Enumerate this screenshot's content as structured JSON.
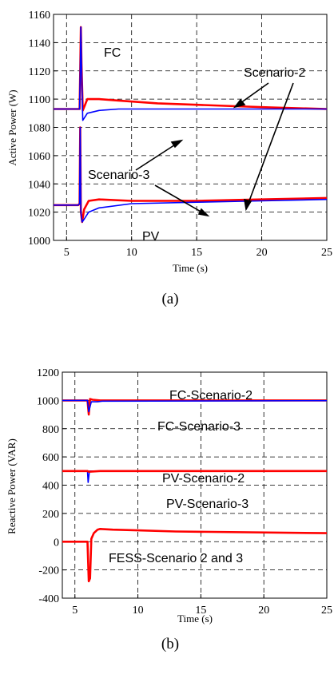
{
  "chart_data": [
    {
      "type": "line",
      "panel_label": "(a)",
      "xlabel": "Time (s)",
      "ylabel": "Active Power (W)",
      "xlim": [
        4,
        25
      ],
      "ylim": [
        1000,
        1160
      ],
      "xticks": [
        "5",
        "10",
        "15",
        "20",
        "25"
      ],
      "xtick_values": [
        5,
        10,
        15,
        20,
        25
      ],
      "yticks": [
        "1000",
        "1020",
        "1040",
        "1060",
        "1080",
        "1100",
        "1120",
        "1140",
        "1160"
      ],
      "ytick_values": [
        1000,
        1020,
        1040,
        1060,
        1080,
        1100,
        1120,
        1140,
        1160
      ],
      "grid": true,
      "annotations": [
        "FC",
        "Scenario-2",
        "Scenario-3",
        "PV"
      ],
      "series": [
        {
          "color": "#ff0000",
          "x": [
            4,
            5.9,
            6.0,
            6.05,
            6.1,
            6.15,
            6.25,
            6.6,
            7.5,
            9,
            12,
            15,
            18,
            21,
            25
          ],
          "y": [
            1093,
            1093,
            1093,
            1120,
            1151,
            1125,
            1092,
            1100,
            1100,
            1099,
            1097,
            1096,
            1095,
            1094,
            1093
          ]
        },
        {
          "color": "#0000ff",
          "x": [
            4,
            5.9,
            6.0,
            6.05,
            6.1,
            6.15,
            6.25,
            6.6,
            7.5,
            9,
            12,
            15,
            18,
            21,
            25
          ],
          "y": [
            1093,
            1093,
            1093,
            1120,
            1151,
            1125,
            1085,
            1090,
            1092,
            1093,
            1093,
            1093,
            1093,
            1093,
            1093
          ]
        },
        {
          "color": "#ff0000",
          "x": [
            4,
            5.9,
            6.0,
            6.05,
            6.1,
            6.2,
            6.35,
            6.7,
            7.5,
            10,
            15,
            20,
            25
          ],
          "y": [
            1025,
            1025,
            1026,
            1080,
            1020,
            1013,
            1022,
            1028,
            1029,
            1028,
            1028,
            1029,
            1030
          ]
        },
        {
          "color": "#0000ff",
          "x": [
            4,
            5.9,
            6.0,
            6.05,
            6.1,
            6.2,
            6.35,
            6.7,
            7.5,
            10,
            15,
            20,
            25
          ],
          "y": [
            1025,
            1025,
            1026,
            1080,
            1020,
            1013,
            1015,
            1020,
            1023,
            1026,
            1027,
            1028,
            1029
          ]
        }
      ]
    },
    {
      "type": "line",
      "panel_label": "(b)",
      "xlabel": "Time (s)",
      "ylabel": "Reactive Power (VAR)",
      "xlim": [
        4,
        25
      ],
      "ylim": [
        -400,
        1200
      ],
      "xticks": [
        "5",
        "10",
        "15",
        "20",
        "25"
      ],
      "xtick_values": [
        5,
        10,
        15,
        20,
        25
      ],
      "yticks": [
        "-400",
        "-200",
        "0",
        "200",
        "400",
        "600",
        "800",
        "1000",
        "1200"
      ],
      "ytick_values": [
        -400,
        -200,
        0,
        200,
        400,
        600,
        800,
        1000,
        1200
      ],
      "grid": true,
      "annotations": [
        "FC-Scenario-2",
        "FC-Scenario-3",
        "PV-Scenario-2",
        "PV-Scenario-3",
        "FESS-Scenario 2 and 3"
      ],
      "series": [
        {
          "color": "#ff0000",
          "x": [
            4,
            5.9,
            6.0,
            6.1,
            6.2,
            6.4,
            7,
            25
          ],
          "y": [
            1000,
            1000,
            1000,
            900,
            1010,
            1005,
            1000,
            1000
          ]
        },
        {
          "color": "#0000ff",
          "x": [
            4,
            5.9,
            6.0,
            6.1,
            6.3,
            6.8,
            7.2,
            25
          ],
          "y": [
            1000,
            1000,
            1000,
            920,
            990,
            990,
            995,
            998
          ]
        },
        {
          "color": "#0000ff",
          "x": [
            4,
            5.9,
            6.0,
            6.05,
            6.15,
            7,
            25
          ],
          "y": [
            500,
            500,
            500,
            420,
            500,
            500,
            500
          ]
        },
        {
          "color": "#ff0000",
          "x": [
            4,
            5.9,
            6.0,
            6.1,
            7,
            25
          ],
          "y": [
            500,
            500,
            500,
            495,
            500,
            500
          ]
        },
        {
          "color": "#ff0000",
          "x": [
            4,
            5.9,
            6.0,
            6.1,
            6.2,
            6.3,
            6.5,
            6.8,
            7,
            8,
            10,
            13,
            25
          ],
          "y": [
            0,
            0,
            0,
            -280,
            -260,
            20,
            60,
            85,
            90,
            85,
            80,
            72,
            60
          ]
        }
      ]
    }
  ]
}
